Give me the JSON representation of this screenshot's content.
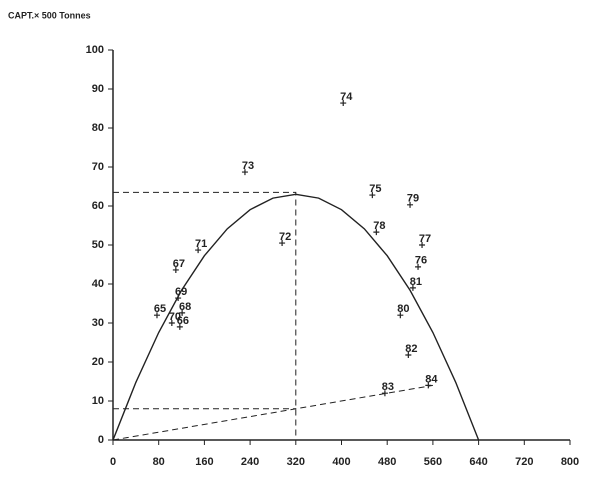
{
  "chart_data": {
    "type": "scatter",
    "y_label": "CAPT.× 500 Tonnes",
    "xlim": [
      0,
      800
    ],
    "xticks": [
      0,
      80,
      160,
      240,
      320,
      400,
      480,
      560,
      640,
      720,
      800
    ],
    "ylim": [
      0,
      100
    ],
    "yticks": [
      0,
      10,
      20,
      30,
      40,
      50,
      60,
      70,
      80,
      90,
      100
    ],
    "color": "#222222",
    "point_labels": [
      "74",
      "73",
      "75",
      "79",
      "78",
      "72",
      "77",
      "71",
      "76",
      "67",
      "81",
      "69",
      "65",
      "68",
      "70",
      "80",
      "66",
      "82",
      "84",
      "83"
    ],
    "x": [
      403,
      231,
      454,
      520,
      461,
      296,
      541,
      149,
      534,
      110,
      525,
      114,
      77,
      121,
      103,
      503,
      117,
      517,
      552,
      476
    ],
    "values": [
      86.4,
      68.7,
      62.8,
      60.3,
      53.3,
      50.5,
      50,
      48.7,
      44.4,
      43.6,
      39,
      36.4,
      32,
      32.6,
      30,
      32,
      29,
      21.8,
      14,
      12
    ],
    "lines": [
      {
        "dashed": false,
        "x": [
          0,
          40,
          80,
          120,
          160,
          200,
          240,
          280,
          320,
          360,
          400,
          440,
          480,
          520,
          560,
          600,
          640
        ],
        "values": [
          0,
          14.77,
          27.56,
          38.39,
          47.25,
          54.14,
          59.06,
          62.02,
          63,
          62.02,
          59.06,
          54.14,
          47.25,
          38.39,
          27.56,
          14.77,
          0
        ]
      },
      {
        "dashed": true,
        "x": [
          0,
          320,
          320
        ],
        "values": [
          63.5,
          63.5,
          0
        ]
      },
      {
        "dashed": true,
        "x": [
          0,
          320
        ],
        "values": [
          8,
          8
        ]
      },
      {
        "dashed": true,
        "x": [
          0,
          320,
          560
        ],
        "values": [
          0,
          8,
          14
        ]
      }
    ]
  }
}
